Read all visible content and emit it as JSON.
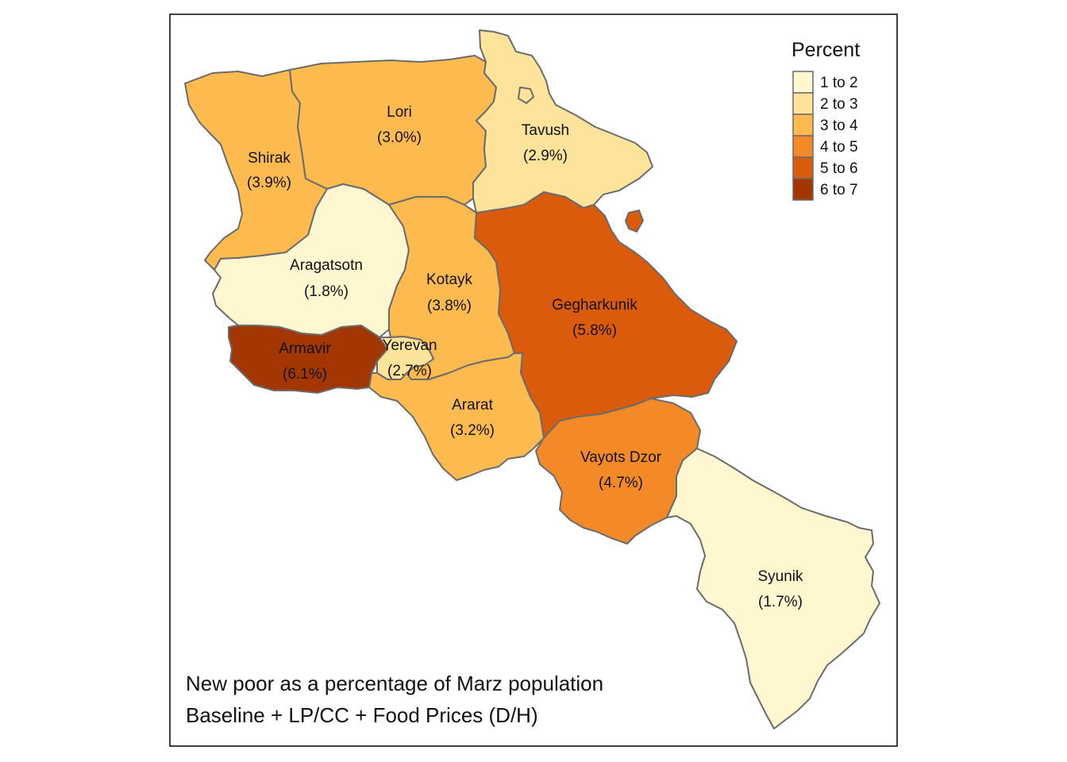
{
  "map": {
    "legend": {
      "title": "Percent",
      "items": [
        {
          "label": "1 to 2",
          "color": "#fff7d0"
        },
        {
          "label": "2 to 3",
          "color": "#fee39b"
        },
        {
          "label": "3 to 4",
          "color": "#fdbb4f"
        },
        {
          "label": "4 to 5",
          "color": "#f38a27"
        },
        {
          "label": "5 to 6",
          "color": "#da5b0c"
        },
        {
          "label": "6 to 7",
          "color": "#a33703"
        }
      ]
    },
    "regions": {
      "lori": {
        "name": "Lori",
        "value": "(3.0%)",
        "color": "#fdbb4f"
      },
      "tavush": {
        "name": "Tavush",
        "value": "(2.9%)",
        "color": "#fee39b"
      },
      "shirak": {
        "name": "Shirak",
        "value": "(3.9%)",
        "color": "#fdbb4f"
      },
      "aragatsotn": {
        "name": "Aragatsotn",
        "value": "(1.8%)",
        "color": "#fff7d0"
      },
      "kotayk": {
        "name": "Kotayk",
        "value": "(3.8%)",
        "color": "#fdbb4f"
      },
      "gegharkunik": {
        "name": "Gegharkunik",
        "value": "(5.8%)",
        "color": "#da5b0c"
      },
      "armavir": {
        "name": "Armavir",
        "value": "(6.1%)",
        "color": "#a33703"
      },
      "yerevan": {
        "name": "Yerevan",
        "value": "(2.7%)",
        "color": "#fee39b"
      },
      "ararat": {
        "name": "Ararat",
        "value": "(3.2%)",
        "color": "#fdbb4f"
      },
      "vayots_dzor": {
        "name": "Vayots Dzor",
        "value": "(4.7%)",
        "color": "#f38a27"
      },
      "syunik": {
        "name": "Syunik",
        "value": "(1.7%)",
        "color": "#fff7d0"
      }
    },
    "caption": {
      "line1": "New poor as a percentage of Marz population",
      "line2": "Baseline + LP/CC + Food Prices (D/H)"
    }
  }
}
